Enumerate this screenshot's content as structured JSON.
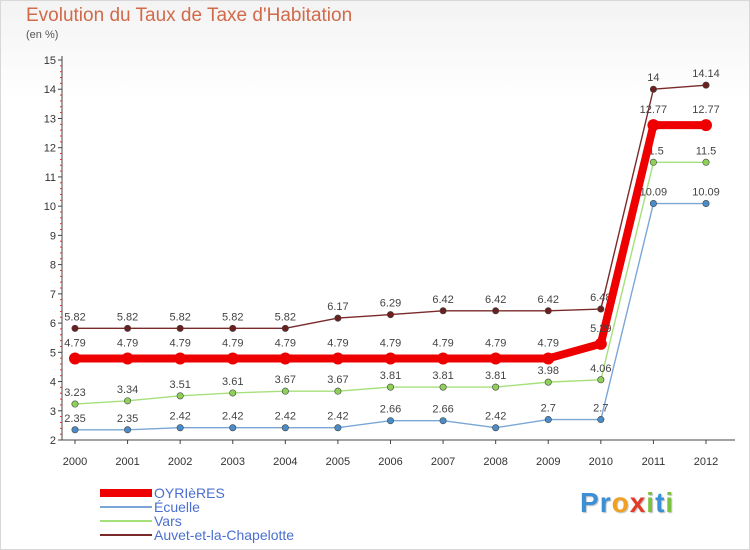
{
  "title": "Evolution du Taux de Taxe d'Habitation",
  "unit_label": "(en %)",
  "logo": {
    "letters": [
      "P",
      "r",
      "o",
      "x",
      "i",
      "t",
      "i"
    ],
    "colors": [
      "#3b8fd6",
      "#3b8fd6",
      "#f0a020",
      "#e23c2a",
      "#7cc242",
      "#3b8fd6",
      "#7cc242"
    ]
  },
  "chart_data": {
    "type": "line",
    "title": "Evolution du Taux de Taxe d'Habitation",
    "ylabel": "(en %)",
    "xlabel": "",
    "ylim": [
      2,
      15
    ],
    "yticks": [
      2,
      3,
      4,
      5,
      6,
      7,
      8,
      9,
      10,
      11,
      12,
      13,
      14,
      15
    ],
    "categories": [
      "2000",
      "2001",
      "2002",
      "2003",
      "2004",
      "2005",
      "2006",
      "2007",
      "2008",
      "2009",
      "2010",
      "2011",
      "2012"
    ],
    "grid": false,
    "legend_position": "bottom-left",
    "series": [
      {
        "name": "Auvet-et-la-Chapelotte",
        "color": "#7a2a2a",
        "marker": "#6b2020",
        "emphasis": false,
        "values": [
          5.82,
          5.82,
          5.82,
          5.82,
          5.82,
          6.17,
          6.29,
          6.42,
          6.42,
          6.42,
          6.48,
          14,
          14.14
        ],
        "labels": [
          "5.82",
          "5.82",
          "5.82",
          "5.82",
          "5.82",
          "6.17",
          "6.29",
          "6.42",
          "6.42",
          "6.42",
          "6.48",
          "14",
          "14.14"
        ]
      },
      {
        "name": "Vars",
        "color": "#a6e07a",
        "marker": "#8fd05a",
        "emphasis": false,
        "values": [
          3.23,
          3.34,
          3.51,
          3.61,
          3.67,
          3.67,
          3.81,
          3.81,
          3.81,
          3.98,
          4.06,
          11.5,
          11.5
        ],
        "labels": [
          "3.23",
          "3.34",
          "3.51",
          "3.61",
          "3.67",
          "3.67",
          "3.81",
          "3.81",
          "3.81",
          "3.98",
          "4.06",
          "11.5",
          "11.5"
        ]
      },
      {
        "name": "Écuelle",
        "color": "#7aa7d6",
        "marker": "#4a8cc8",
        "emphasis": false,
        "values": [
          2.35,
          2.35,
          2.42,
          2.42,
          2.42,
          2.42,
          2.66,
          2.66,
          2.42,
          2.7,
          2.7,
          10.09,
          10.09
        ],
        "labels": [
          "2.35",
          "2.35",
          "2.42",
          "2.42",
          "2.42",
          "2.42",
          "2.66",
          "2.66",
          "2.42",
          "2.7",
          "2.7",
          "10.09",
          "10.09"
        ]
      },
      {
        "name": "OYRIèRES",
        "color": "#ee0000",
        "marker": "#ee0000",
        "emphasis": true,
        "values": [
          4.79,
          4.79,
          4.79,
          4.79,
          4.79,
          4.79,
          4.79,
          4.79,
          4.79,
          4.79,
          5.29,
          12.77,
          12.77
        ],
        "labels": [
          "4.79",
          "4.79",
          "4.79",
          "4.79",
          "4.79",
          "4.79",
          "4.79",
          "4.79",
          "4.79",
          "4.79",
          "5.29",
          "12.77",
          "12.77"
        ]
      }
    ],
    "legend": [
      "OYRIèRES",
      "Écuelle",
      "Vars",
      "Auvet-et-la-Chapelotte"
    ]
  }
}
